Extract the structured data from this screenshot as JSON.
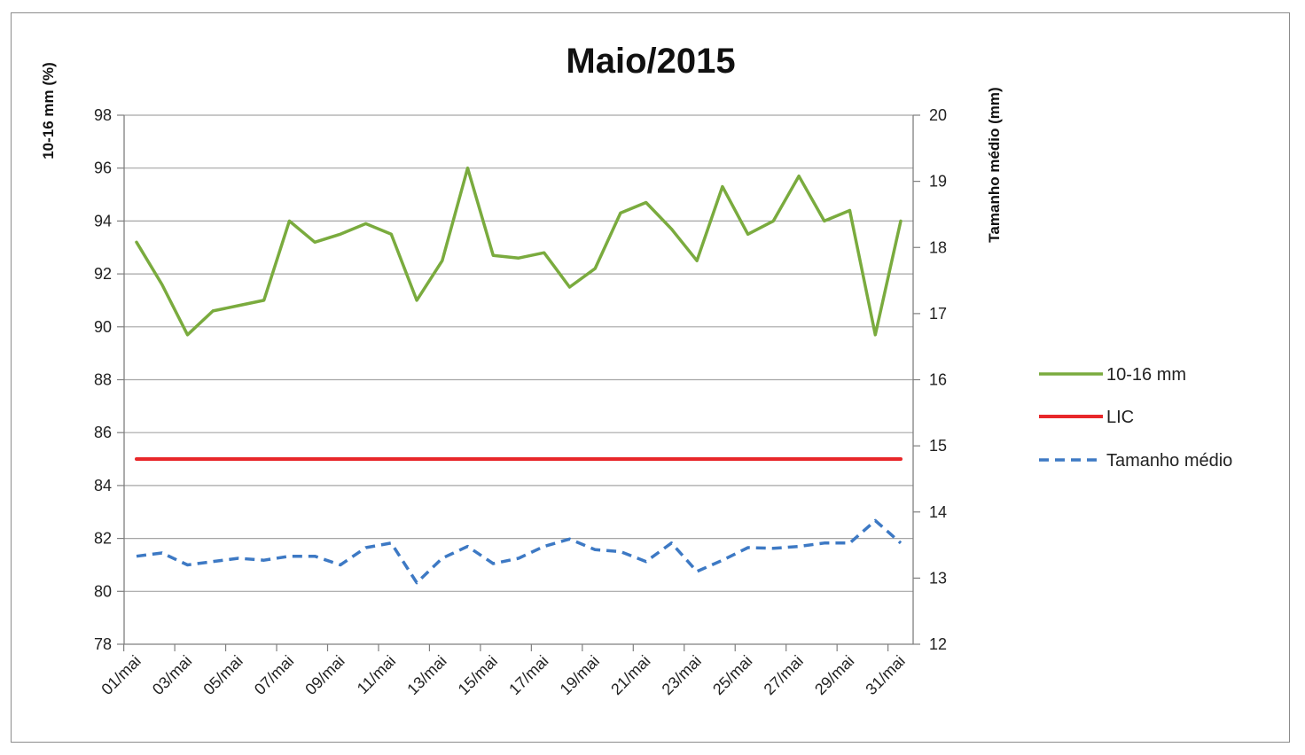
{
  "chart_data": {
    "type": "line",
    "title": "Maio/2015",
    "ylabel_left": "10-16 mm (%)",
    "ylabel_right": "Tamanho médio (mm)",
    "ylim_left": [
      78,
      98
    ],
    "ylim_right": [
      12,
      20
    ],
    "yticks_left": [
      "78",
      "80",
      "82",
      "84",
      "86",
      "88",
      "90",
      "92",
      "94",
      "96",
      "98"
    ],
    "yticks_right": [
      "12",
      "13",
      "14",
      "15",
      "16",
      "17",
      "18",
      "19",
      "20"
    ],
    "grid": true,
    "legend_position": "right",
    "x": [
      "01/mai",
      "02/mai",
      "03/mai",
      "04/mai",
      "05/mai",
      "06/mai",
      "07/mai",
      "08/mai",
      "09/mai",
      "10/mai",
      "11/mai",
      "12/mai",
      "13/mai",
      "14/mai",
      "15/mai",
      "16/mai",
      "17/mai",
      "18/mai",
      "19/mai",
      "20/mai",
      "21/mai",
      "22/mai",
      "23/mai",
      "24/mai",
      "25/mai",
      "26/mai",
      "27/mai",
      "28/mai",
      "29/mai",
      "30/mai",
      "31/mai"
    ],
    "xtick_labels": [
      "01/mai",
      "03/mai",
      "05/mai",
      "07/mai",
      "09/mai",
      "11/mai",
      "13/mai",
      "15/mai",
      "17/mai",
      "19/mai",
      "21/mai",
      "23/mai",
      "25/mai",
      "27/mai",
      "29/mai",
      "31/mai"
    ],
    "series": [
      {
        "name": "10-16 mm",
        "axis": "left",
        "color": "#7aab3e",
        "style": "solid",
        "values": [
          93.2,
          91.6,
          89.7,
          90.6,
          90.8,
          91.0,
          94.0,
          93.2,
          93.5,
          93.9,
          93.5,
          91.0,
          92.5,
          96.0,
          92.7,
          92.6,
          92.8,
          91.5,
          92.2,
          94.3,
          94.7,
          93.7,
          92.5,
          95.3,
          93.5,
          94.0,
          95.7,
          94.0,
          94.4,
          89.7,
          94.0
        ]
      },
      {
        "name": "LIC",
        "axis": "left",
        "color": "#e8272a",
        "style": "solid",
        "values": [
          85,
          85,
          85,
          85,
          85,
          85,
          85,
          85,
          85,
          85,
          85,
          85,
          85,
          85,
          85,
          85,
          85,
          85,
          85,
          85,
          85,
          85,
          85,
          85,
          85,
          85,
          85,
          85,
          85,
          85,
          85
        ]
      },
      {
        "name": "Tamanho médio",
        "axis": "right",
        "color": "#3d79c4",
        "style": "dashed",
        "values": [
          13.33,
          13.38,
          13.2,
          13.25,
          13.3,
          13.27,
          13.33,
          13.33,
          13.2,
          13.46,
          13.53,
          12.93,
          13.3,
          13.48,
          13.22,
          13.3,
          13.48,
          13.59,
          13.43,
          13.4,
          13.25,
          13.53,
          13.1,
          13.27,
          13.46,
          13.45,
          13.48,
          13.53,
          13.53,
          13.87,
          13.53
        ]
      }
    ]
  }
}
